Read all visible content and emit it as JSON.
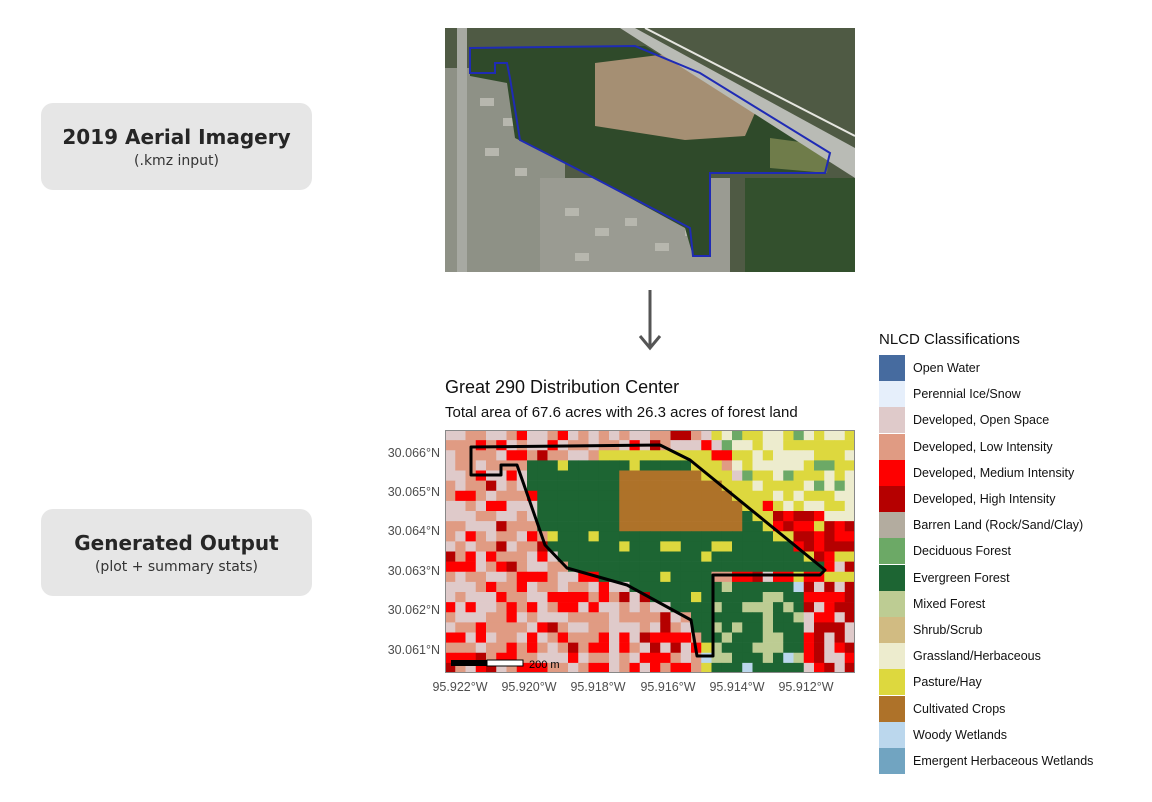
{
  "steps": {
    "aerial": {
      "title": "2019 Aerial Imagery",
      "subtitle": "(.kmz input)"
    },
    "output": {
      "title": "Generated Output",
      "subtitle": "(plot + summary stats)"
    }
  },
  "plot": {
    "title": "Great 290 Distribution Center",
    "subtitle": "Total area of 67.6 acres with 26.3 acres of forest land",
    "y_ticks": [
      "30.066°N",
      "30.065°N",
      "30.064°N",
      "30.063°N",
      "30.062°N",
      "30.061°N"
    ],
    "x_ticks": [
      "95.922°W",
      "95.920°W",
      "95.918°W",
      "95.916°W",
      "95.914°W",
      "95.912°W"
    ],
    "scale_bar_label": "200 m"
  },
  "legend": {
    "title": "NLCD Classifications",
    "items": [
      {
        "label": "Open Water",
        "color": "#466b9f"
      },
      {
        "label": "Perennial Ice/Snow",
        "color": "#e6effb"
      },
      {
        "label": "Developed, Open Space",
        "color": "#dfcaca"
      },
      {
        "label": "Developed, Low Intensity",
        "color": "#e09b83"
      },
      {
        "label": "Developed, Medium Intensity",
        "color": "#fe0000"
      },
      {
        "label": "Developed, High Intensity",
        "color": "#b50000"
      },
      {
        "label": "Barren Land (Rock/Sand/Clay)",
        "color": "#b3ac9f"
      },
      {
        "label": "Deciduous Forest",
        "color": "#6ca966"
      },
      {
        "label": "Evergreen Forest",
        "color": "#1d6533"
      },
      {
        "label": "Mixed Forest",
        "color": "#bdcc93"
      },
      {
        "label": "Shrub/Scrub",
        "color": "#d1bb82"
      },
      {
        "label": "Grassland/Herbaceous",
        "color": "#edecce"
      },
      {
        "label": "Pasture/Hay",
        "color": "#ddd83e"
      },
      {
        "label": "Cultivated Crops",
        "color": "#ae7229"
      },
      {
        "label": "Woody Wetlands",
        "color": "#bbd7ed"
      },
      {
        "label": "Emergent Herbaceous Wetlands",
        "color": "#71a4c1"
      }
    ]
  }
}
